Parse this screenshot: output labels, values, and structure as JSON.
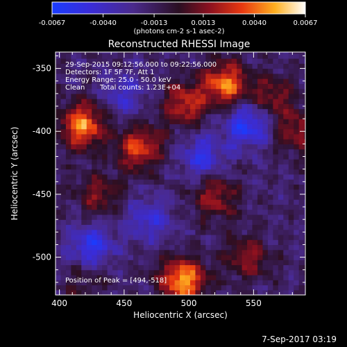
{
  "chart_data": {
    "type": "heatmap",
    "title": "Reconstructed RHESSI Image",
    "xlabel": "Heliocentric X (arcsec)",
    "ylabel": "Heliocentric Y (arcsec)",
    "xlim": [
      397,
      590
    ],
    "ylim": [
      -530,
      -337
    ],
    "x_ticks": [
      "400",
      "450",
      "500",
      "550"
    ],
    "y_ticks": [
      "-350",
      "-400",
      "-450",
      "-500"
    ],
    "colorbar": {
      "ticks": [
        "-0.0067",
        "-0.0040",
        "-0.0013",
        "0.0013",
        "0.0040",
        "0.0067"
      ],
      "unit_label": "(photons cm-2 s-1 asec-2)",
      "range": [
        -0.0067,
        0.0067
      ]
    },
    "annotations": {
      "line1": "29-Sep-2015 09:12:56.000 to 09:22:56.000",
      "line2": "Detectors: 1F 5F 7F, Att 1",
      "line3": "Energy Range: 25.0 - 50.0 keV",
      "line4a": "Clean",
      "line4b": "Total counts: 1.23E+04",
      "peak": "Position of Peak = [494,-518]"
    },
    "footer_timestamp": "7-Sep-2017 03:19",
    "hot_spots": [
      {
        "x": 418,
        "y": -395,
        "value": 0.0062
      },
      {
        "x": 462,
        "y": -413,
        "value": 0.005
      },
      {
        "x": 497,
        "y": -378,
        "value": 0.0042
      },
      {
        "x": 528,
        "y": -362,
        "value": 0.0058
      },
      {
        "x": 495,
        "y": -518,
        "value": 0.0067
      },
      {
        "x": 520,
        "y": -452,
        "value": 0.0035
      },
      {
        "x": 565,
        "y": -372,
        "value": 0.003
      },
      {
        "x": 430,
        "y": -450,
        "value": 0.0028
      },
      {
        "x": 583,
        "y": -400,
        "value": 0.0032
      },
      {
        "x": 545,
        "y": -500,
        "value": 0.003
      },
      {
        "x": 420,
        "y": -520,
        "value": 0.0015
      }
    ],
    "cold_spots": [
      {
        "x": 545,
        "y": -395,
        "value": -0.0045
      },
      {
        "x": 510,
        "y": -420,
        "value": -0.0035
      },
      {
        "x": 425,
        "y": -490,
        "value": -0.004
      },
      {
        "x": 470,
        "y": -470,
        "value": -0.003
      },
      {
        "x": 450,
        "y": -370,
        "value": -0.0025
      }
    ]
  }
}
